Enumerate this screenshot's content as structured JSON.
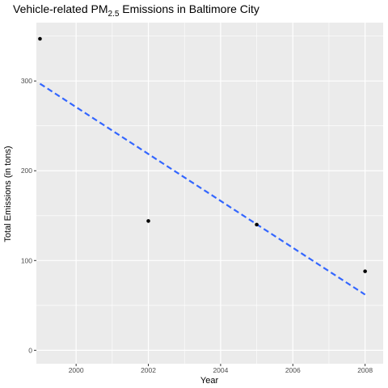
{
  "chart_data": {
    "type": "scatter",
    "title_prefix": "Vehicle-related PM",
    "title_subscript": "2.5",
    "title_suffix": " Emissions in Baltimore City",
    "xlabel": "Year",
    "ylabel": "Total Emissions (in tons)",
    "xlim": [
      1998.9,
      2008.5
    ],
    "ylim": [
      -15,
      365
    ],
    "x_ticks": [
      2000,
      2002,
      2004,
      2006,
      2008
    ],
    "x_minor": [
      2001,
      2003,
      2005,
      2007
    ],
    "y_ticks": [
      0,
      100,
      200,
      300
    ],
    "y_minor": [
      50,
      150,
      250,
      350
    ],
    "x_tick_labels": [
      "2000",
      "2002",
      "2004",
      "2006",
      "2008"
    ],
    "y_tick_labels": [
      "0",
      "100",
      "200",
      "300"
    ],
    "points": [
      {
        "x": 1999,
        "y": 347
      },
      {
        "x": 2002,
        "y": 144
      },
      {
        "x": 2005,
        "y": 140
      },
      {
        "x": 2008,
        "y": 88
      }
    ],
    "trend_line": {
      "x": [
        1999,
        2008
      ],
      "y": [
        297,
        62
      ],
      "style": "dashed"
    },
    "grid": true,
    "colors": {
      "panel": "#ebebeb",
      "grid": "#ffffff",
      "point": "#000000",
      "trend": "#3366ff"
    }
  }
}
